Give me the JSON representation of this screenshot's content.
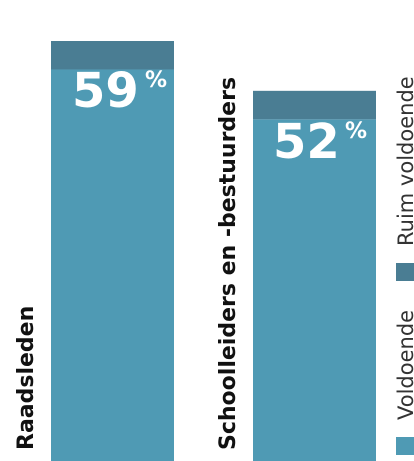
{
  "chart_data": {
    "type": "bar",
    "stacked": true,
    "categories": [
      "Raadsleden",
      "Schoolleiders en -bestuurders"
    ],
    "series": [
      {
        "name": "Voldoende",
        "color": "#4f9ab4",
        "values": [
          55,
          48
        ]
      },
      {
        "name": "Ruim voldoende",
        "color": "#4a7d93",
        "values": [
          4,
          4
        ]
      }
    ],
    "totals": [
      59,
      52
    ],
    "total_labels": [
      "59",
      "52"
    ],
    "unit_symbol": "%",
    "ylim": [
      0,
      100
    ],
    "legend_position": "right",
    "grid": false
  }
}
